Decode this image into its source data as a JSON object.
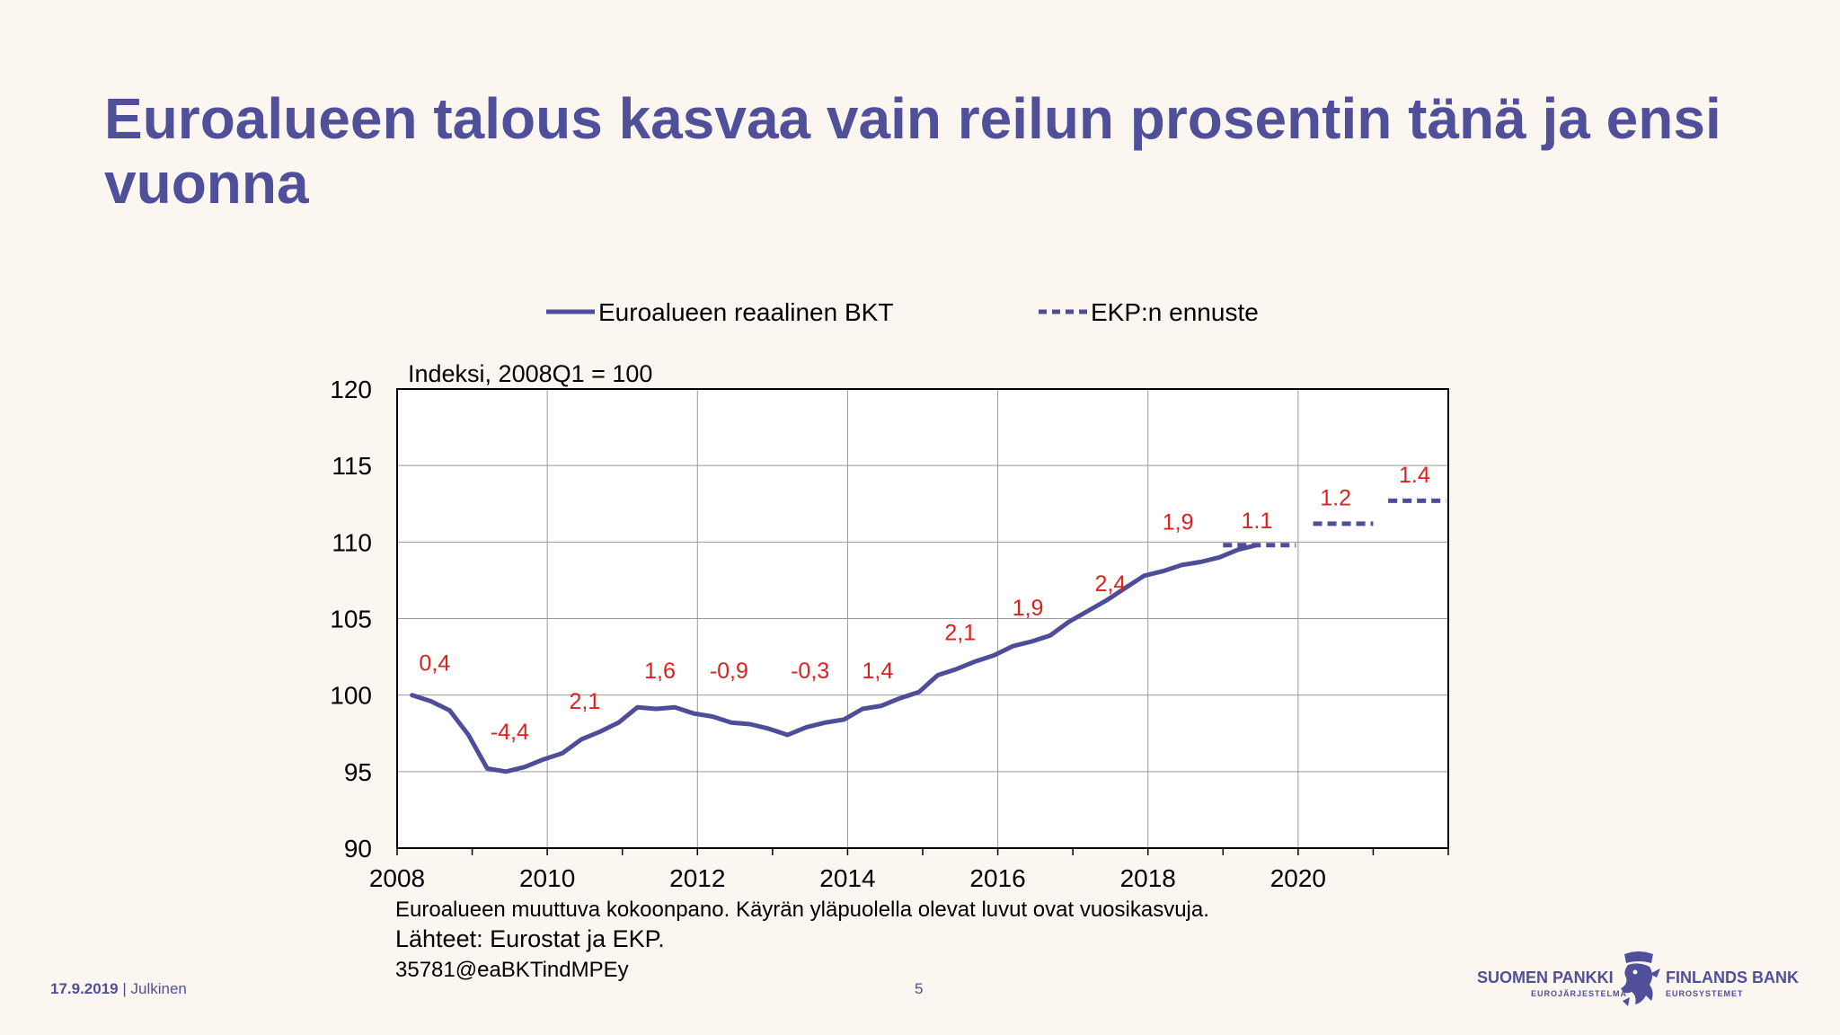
{
  "slide": {
    "title": "Euroalueen talous kasvaa vain reilun prosentin tänä ja ensi vuonna"
  },
  "footer": {
    "date": "17.9.2019",
    "classification": "| Julkinen",
    "page_number": "5"
  },
  "logo": {
    "name_fi": "SUOMEN PANKKI",
    "sub_fi": "EUROJÄRJESTELMÄ",
    "name_sv": "FINLANDS BANK",
    "sub_sv": "EUROSYSTEMET",
    "icon": "lion-crest-icon"
  },
  "colors": {
    "accent": "#4f4f9a",
    "series_line": "#4d4d99",
    "growth_labels": "#e02020",
    "background": "#fcf6f1"
  },
  "chart_data": {
    "type": "line",
    "axis_note": "Indeksi, 2008Q1 = 100",
    "ylim": [
      90,
      120
    ],
    "yticks": [
      90,
      95,
      100,
      105,
      110,
      115,
      120
    ],
    "xlim": [
      2008,
      2022
    ],
    "xtick_labels": [
      "2008",
      "2010",
      "2012",
      "2014",
      "2016",
      "2018",
      "2020"
    ],
    "xticks": [
      2008,
      2010,
      2012,
      2014,
      2016,
      2018,
      2020
    ],
    "grid": true,
    "legend": {
      "placement": "top"
    },
    "series": [
      {
        "name": "Euroalueen reaalinen BKT",
        "style": "solid",
        "x": [
          2008.2,
          2008.45,
          2008.7,
          2008.95,
          2009.2,
          2009.45,
          2009.7,
          2009.95,
          2010.2,
          2010.45,
          2010.7,
          2010.95,
          2011.2,
          2011.45,
          2011.7,
          2011.95,
          2012.2,
          2012.45,
          2012.7,
          2012.95,
          2013.2,
          2013.45,
          2013.7,
          2013.95,
          2014.2,
          2014.45,
          2014.7,
          2014.95,
          2015.2,
          2015.45,
          2015.7,
          2015.95,
          2016.2,
          2016.45,
          2016.7,
          2016.95,
          2017.2,
          2017.45,
          2017.7,
          2017.95,
          2018.2,
          2018.45,
          2018.7,
          2018.95,
          2019.2,
          2019.45
        ],
        "y": [
          100.0,
          99.6,
          99.0,
          97.4,
          95.2,
          95.0,
          95.3,
          95.8,
          96.2,
          97.1,
          97.6,
          98.2,
          99.2,
          99.1,
          99.2,
          98.8,
          98.6,
          98.2,
          98.1,
          97.8,
          97.4,
          97.9,
          98.2,
          98.4,
          99.1,
          99.3,
          99.8,
          100.2,
          101.3,
          101.7,
          102.2,
          102.6,
          103.2,
          103.5,
          103.9,
          104.8,
          105.5,
          106.2,
          107.0,
          107.8,
          108.1,
          108.5,
          108.7,
          109.0,
          109.5,
          109.8
        ]
      },
      {
        "name": "EKP:n ennuste",
        "style": "dashed",
        "segments": [
          {
            "x": [
              2019.0,
              2019.97
            ],
            "y": 109.8
          },
          {
            "x": [
              2020.2,
              2021.0
            ],
            "y": 111.2
          },
          {
            "x": [
              2021.2,
              2021.97
            ],
            "y": 112.7
          }
        ]
      }
    ],
    "annotations": [
      {
        "text": "0,4",
        "x": 2008.5,
        "y": 101.6
      },
      {
        "text": "-4,4",
        "x": 2009.5,
        "y": 97.1
      },
      {
        "text": "2,1",
        "x": 2010.5,
        "y": 99.1
      },
      {
        "text": "1,6",
        "x": 2011.5,
        "y": 101.1
      },
      {
        "text": "-0,9",
        "x": 2012.42,
        "y": 101.1
      },
      {
        "text": "-0,3",
        "x": 2013.5,
        "y": 101.1
      },
      {
        "text": "1,4",
        "x": 2014.4,
        "y": 101.1
      },
      {
        "text": "2,1",
        "x": 2015.5,
        "y": 103.6
      },
      {
        "text": "1,9",
        "x": 2016.4,
        "y": 105.2
      },
      {
        "text": "2,4",
        "x": 2017.5,
        "y": 106.8
      },
      {
        "text": "1,9",
        "x": 2018.4,
        "y": 110.8
      },
      {
        "text": "1.1",
        "x": 2019.45,
        "y": 110.9
      },
      {
        "text": "1.2",
        "x": 2020.5,
        "y": 112.4
      },
      {
        "text": "1.4",
        "x": 2021.55,
        "y": 113.9
      }
    ],
    "notes": [
      "Euroalueen muuttuva kokoonpano. Käyrän yläpuolella olevat luvut ovat vuosikasvuja.",
      "Lähteet: Eurostat ja EKP.",
      "35781@eaBKTindMPEy"
    ]
  }
}
